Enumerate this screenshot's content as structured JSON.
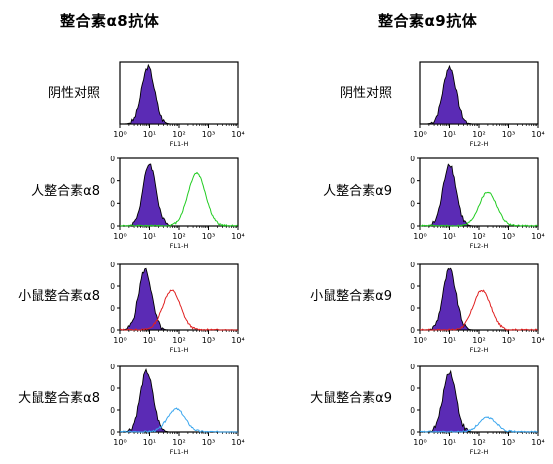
{
  "columns": [
    {
      "title": "整合素α8抗体"
    },
    {
      "title": "整合素α9抗体"
    }
  ],
  "panels": [
    {
      "label": "阴性对照",
      "xlabel": "FL1-H",
      "show_y": false,
      "filled_peak_log": 0.95,
      "curve": null
    },
    {
      "label": "人整合素α8",
      "xlabel": "FL1-H",
      "show_y": true,
      "filled_peak_log": 1.0,
      "curve": {
        "color": "#22cc22",
        "peak_log": 2.6,
        "height": 0.78
      }
    },
    {
      "label": "小鼠整合素α8",
      "xlabel": "FL1-H",
      "show_y": true,
      "filled_peak_log": 0.85,
      "curve": {
        "color": "#e02020",
        "peak_log": 1.75,
        "height": 0.6
      }
    },
    {
      "label": "大鼠整合素α8",
      "xlabel": "FL1-H",
      "show_y": true,
      "filled_peak_log": 0.9,
      "curve": {
        "color": "#3aa6ee",
        "peak_log": 1.9,
        "height": 0.35
      }
    },
    {
      "label": "阴性对照",
      "xlabel": "FL2-H",
      "show_y": false,
      "filled_peak_log": 1.0,
      "curve": null
    },
    {
      "label": "人整合素α9",
      "xlabel": "FL2-H",
      "show_y": true,
      "filled_peak_log": 1.0,
      "curve": {
        "color": "#22cc22",
        "peak_log": 2.3,
        "height": 0.5
      }
    },
    {
      "label": "小鼠整合素α9",
      "xlabel": "FL2-H",
      "show_y": true,
      "filled_peak_log": 1.0,
      "curve": {
        "color": "#e02020",
        "peak_log": 2.1,
        "height": 0.6
      }
    },
    {
      "label": "大鼠整合素α9",
      "xlabel": "FL2-H",
      "show_y": true,
      "filled_peak_log": 1.0,
      "curve": {
        "color": "#3aa6ee",
        "peak_log": 2.3,
        "height": 0.22
      }
    }
  ],
  "chart_data": {
    "type": "histogram",
    "x_scale": "log",
    "xlim": [
      1,
      10000
    ],
    "x_ticks": [
      "10⁰",
      "10¹",
      "10²",
      "10³",
      "10⁴"
    ],
    "ylim": [
      0,
      120
    ],
    "y_ticks": [
      0,
      40,
      80,
      120
    ],
    "filled_color": "#5b2bb5"
  }
}
